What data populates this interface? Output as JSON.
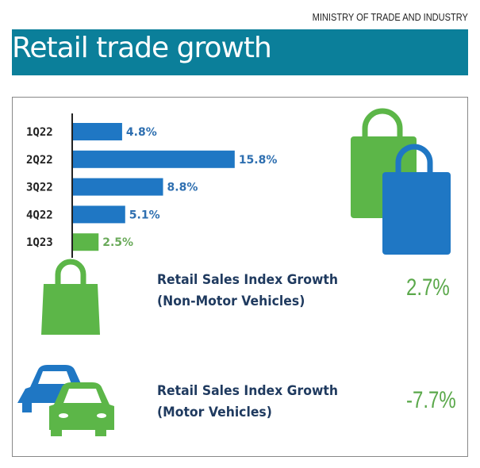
{
  "header": {
    "ministry": "MINISTRY OF TRADE AND INDUSTRY",
    "title": "Retail trade growth"
  },
  "colors": {
    "band": "#0b7f9a",
    "blue": "#1f77c4",
    "green": "#5cb648",
    "text": "#1f3a5f"
  },
  "chart_data": {
    "type": "bar",
    "orientation": "horizontal",
    "categories": [
      "1Q22",
      "2Q22",
      "3Q22",
      "4Q22",
      "1Q23"
    ],
    "values": [
      4.8,
      15.8,
      8.8,
      5.1,
      2.5
    ],
    "labels": [
      "4.8%",
      "15.8%",
      "8.8%",
      "5.1%",
      "2.5%"
    ],
    "bar_colors": [
      "#1f77c4",
      "#1f77c4",
      "#1f77c4",
      "#1f77c4",
      "#5cb648"
    ],
    "label_colors": [
      "#2e6fb0",
      "#2e6fb0",
      "#2e6fb0",
      "#2e6fb0",
      "#6aaa5a"
    ],
    "xlim": [
      0,
      16
    ],
    "title": "",
    "xlabel": "",
    "ylabel": ""
  },
  "stats": [
    {
      "line1": "Retail Sales Index Growth",
      "line2": "(Non-Motor Vehicles)",
      "value": "2.7%",
      "icon": "shopping-bag-icon"
    },
    {
      "line1": "Retail Sales Index Growth",
      "line2": "(Motor Vehicles)",
      "value": "-7.7%",
      "icon": "cars-icon"
    }
  ]
}
